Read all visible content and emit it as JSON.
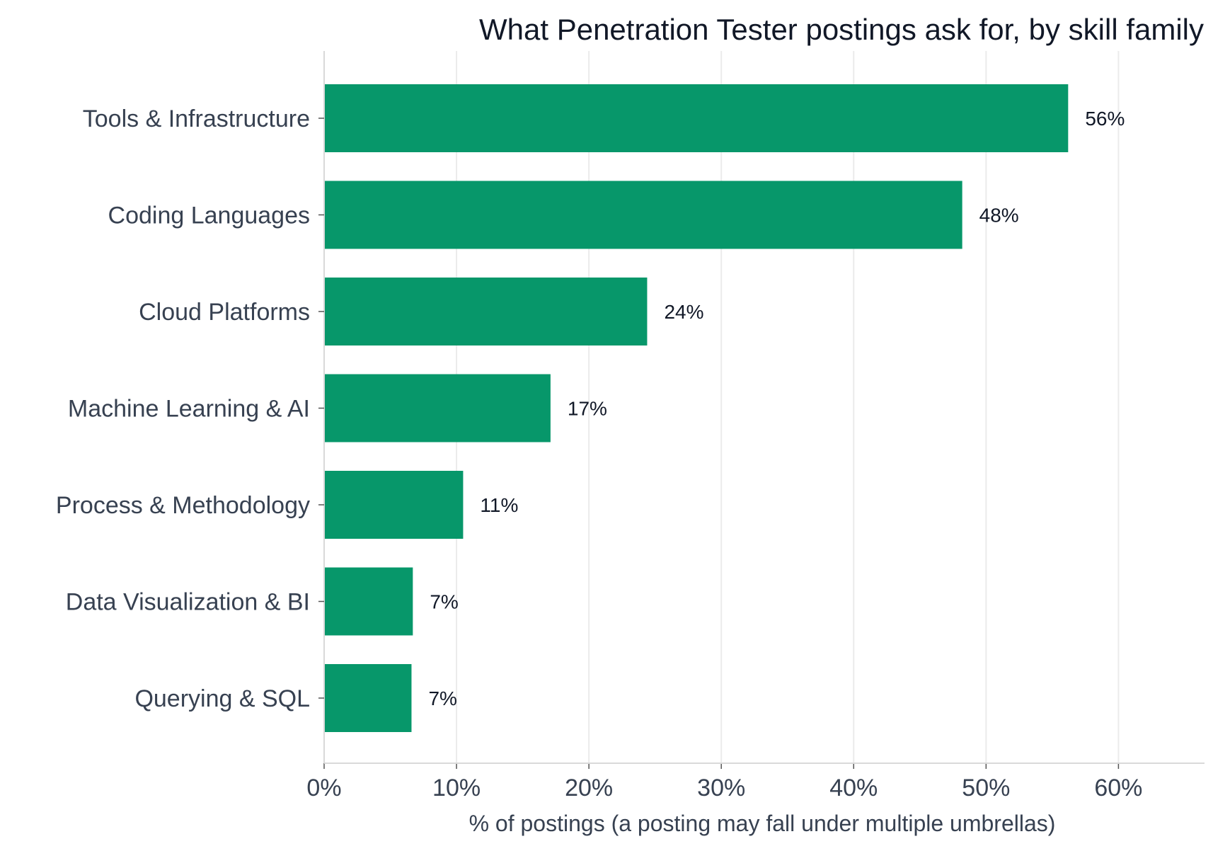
{
  "chart_data": {
    "type": "bar",
    "orientation": "horizontal",
    "title": "What Penetration Tester postings ask for, by skill family",
    "xlabel": "% of postings (a posting may fall under multiple umbrellas)",
    "ylabel": "",
    "categories": [
      "Tools & Infrastructure",
      "Coding Languages",
      "Cloud Platforms",
      "Machine Learning & AI",
      "Process & Methodology",
      "Data Visualization & BI",
      "Querying & SQL"
    ],
    "values": [
      56.2,
      48.2,
      24.4,
      17.1,
      10.5,
      6.7,
      6.6
    ],
    "data_labels": [
      "56%",
      "48%",
      "24%",
      "17%",
      "11%",
      "7%",
      "7%"
    ],
    "xticks": [
      0,
      10,
      20,
      30,
      40,
      50,
      60
    ],
    "xtick_labels": [
      "0%",
      "10%",
      "20%",
      "30%",
      "40%",
      "50%",
      "60%"
    ],
    "xlim": [
      0,
      66.5
    ],
    "grid": "vertical",
    "legend": "none",
    "colors": {
      "bar": "#07976a",
      "title": "#111827",
      "axis_text": "#374151",
      "data_label": "#111827",
      "grid": "#ebebeb"
    }
  }
}
